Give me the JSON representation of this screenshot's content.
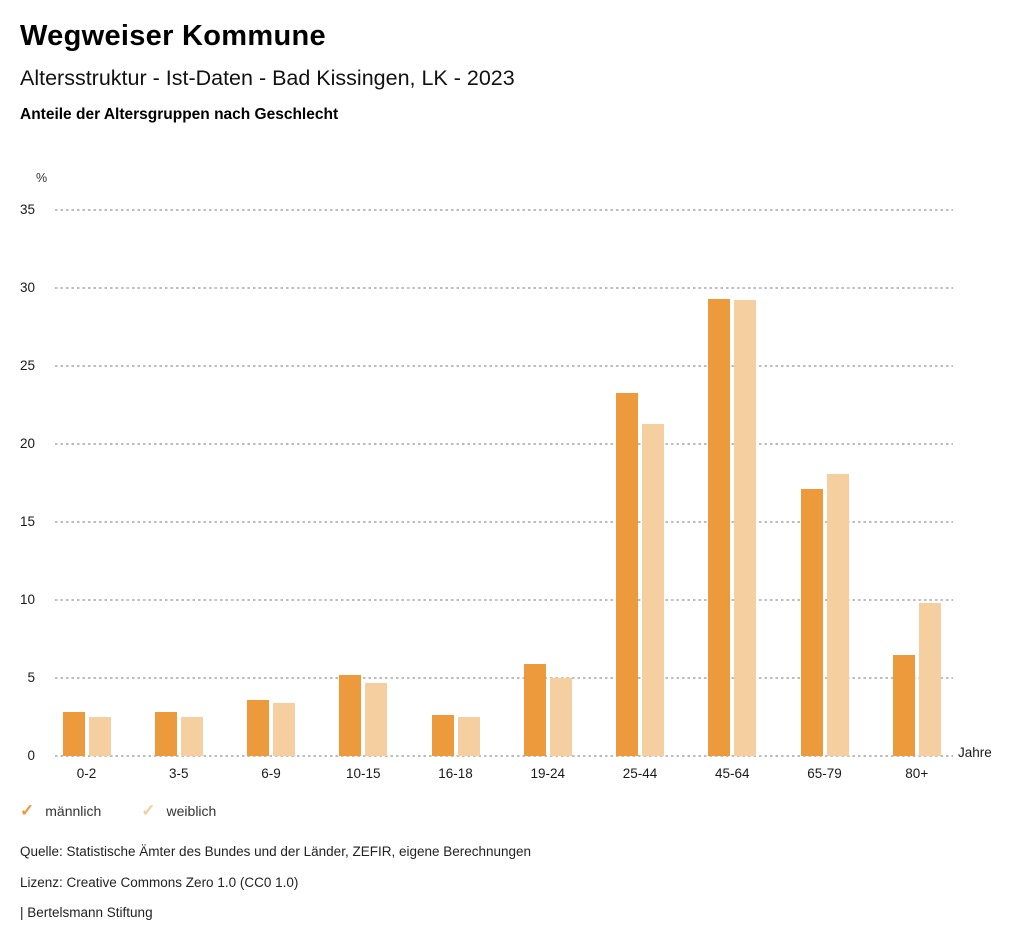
{
  "header": {
    "brand": "Wegweiser Kommune",
    "subtitle": "Altersstruktur - Ist-Daten - Bad Kissingen, LK - 2023",
    "heading": "Anteile der Altersgruppen nach Geschlecht"
  },
  "chart_data": {
    "type": "bar",
    "title": "Anteile der Altersgruppen nach Geschlecht",
    "categories": [
      "0-2",
      "3-5",
      "6-9",
      "10-15",
      "16-18",
      "19-24",
      "25-44",
      "45-64",
      "65-79",
      "80+"
    ],
    "series": [
      {
        "name": "männlich",
        "color": "#EC9A3C",
        "values": [
          2.8,
          2.8,
          3.6,
          5.2,
          2.6,
          5.9,
          23.3,
          29.3,
          17.1,
          6.5
        ]
      },
      {
        "name": "weiblich",
        "color": "#F5CFA0",
        "values": [
          2.5,
          2.5,
          3.4,
          4.7,
          2.5,
          5.0,
          21.3,
          29.2,
          18.1,
          9.8
        ]
      }
    ],
    "ylabel": "%",
    "xlabel": "Jahre",
    "ylim": [
      0,
      35
    ],
    "yticks": [
      0,
      5,
      10,
      15,
      20,
      25,
      30,
      35
    ],
    "grid": "dotted-horizontal",
    "legend_position": "bottom-left"
  },
  "icons": {
    "legend_check": "✓"
  },
  "colors": {
    "male": "#EC9A3C",
    "female": "#F5CFA0",
    "grid": "#bdbdbd",
    "text": "#1a1a1a"
  },
  "footer": {
    "source": "Quelle: Statistische Ämter des Bundes und der Länder, ZEFIR, eigene Berechnungen",
    "license": "Lizenz: Creative Commons Zero 1.0 (CC0 1.0)",
    "attribution": "| Bertelsmann Stiftung"
  }
}
